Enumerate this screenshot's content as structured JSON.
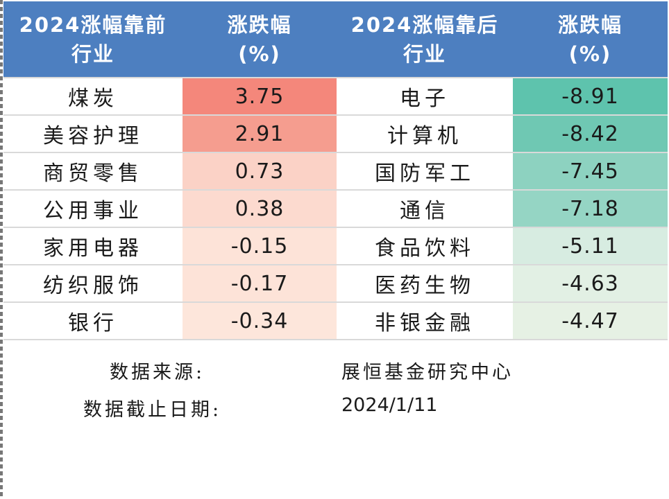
{
  "table": {
    "headers": {
      "top_industry": [
        "2024涨幅靠前",
        "行业"
      ],
      "top_change": [
        "涨跌幅",
        "(%)"
      ],
      "bottom_industry": [
        "2024涨幅靠后",
        "行业"
      ],
      "bottom_change": [
        "涨跌幅",
        "(%)"
      ]
    },
    "rows": [
      {
        "top_name": "煤炭",
        "top_value": "3.75",
        "top_color": "#f4877b",
        "bottom_name": "电子",
        "bottom_value": "-8.91",
        "bottom_color": "#5ec3ad"
      },
      {
        "top_name": "美容护理",
        "top_value": "2.91",
        "top_color": "#f59d8f",
        "bottom_name": "计算机",
        "bottom_value": "-8.42",
        "bottom_color": "#6fc8b3"
      },
      {
        "top_name": "商贸零售",
        "top_value": "0.73",
        "top_color": "#fbd2c6",
        "bottom_name": "国防军工",
        "bottom_value": "-7.45",
        "bottom_color": "#8dd2c0"
      },
      {
        "top_name": "公用事业",
        "top_value": "0.38",
        "top_color": "#fcdacf",
        "bottom_name": "通信",
        "bottom_value": "-7.18",
        "bottom_color": "#95d5c4"
      },
      {
        "top_name": "家用电器",
        "top_value": "-0.15",
        "top_color": "#fde3d8",
        "bottom_name": "食品饮料",
        "bottom_value": "-5.11",
        "bottom_color": "#d7ece1"
      },
      {
        "top_name": "纺织服饰",
        "top_value": "-0.17",
        "top_color": "#fde3d8",
        "bottom_name": "医药生物",
        "bottom_value": "-4.63",
        "bottom_color": "#e2f0e4"
      },
      {
        "top_name": "银行",
        "top_value": "-0.34",
        "top_color": "#fde6db",
        "bottom_name": "非银金融",
        "bottom_value": "-4.47",
        "bottom_color": "#e6f1e4"
      }
    ]
  },
  "footer": {
    "source_label": "数据来源:",
    "source_value": "展恒基金研究中心",
    "date_label": "数据截止日期:",
    "date_value": "2024/1/11"
  },
  "colors": {
    "header_bg": "#4d7fc0",
    "header_text": "#ffffff"
  }
}
